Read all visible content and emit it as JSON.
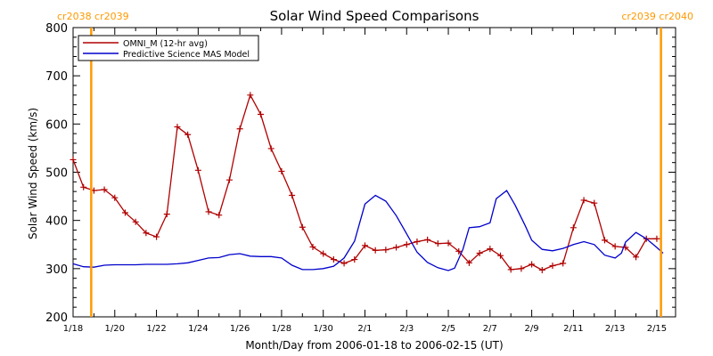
{
  "chart_data": {
    "type": "line",
    "title": "Solar Wind Speed Comparisons",
    "xlabel": "Month/Day from 2006-01-18 to 2006-02-15 (UT)",
    "ylabel": "Solar Wind Speed (km/s)",
    "xlim_days": [
      0,
      28.9
    ],
    "ylim": [
      200,
      800
    ],
    "y_ticks": [
      200,
      300,
      400,
      500,
      600,
      700,
      800
    ],
    "x_ticks": [
      {
        "day": 0,
        "label": "1/18"
      },
      {
        "day": 2,
        "label": "1/20"
      },
      {
        "day": 4,
        "label": "1/22"
      },
      {
        "day": 6,
        "label": "1/24"
      },
      {
        "day": 8,
        "label": "1/26"
      },
      {
        "day": 10,
        "label": "1/28"
      },
      {
        "day": 12,
        "label": "1/30"
      },
      {
        "day": 14,
        "label": "2/1"
      },
      {
        "day": 16,
        "label": "2/3"
      },
      {
        "day": 18,
        "label": "2/5"
      },
      {
        "day": 20,
        "label": "2/7"
      },
      {
        "day": 22,
        "label": "2/9"
      },
      {
        "day": 24,
        "label": "2/11"
      },
      {
        "day": 26,
        "label": "2/13"
      },
      {
        "day": 28,
        "label": "2/15"
      }
    ],
    "carrington_markers": [
      {
        "day": 0.87,
        "label": "cr2038 cr2039",
        "label_side": "left"
      },
      {
        "day": 28.2,
        "label": "cr2039 cr2040",
        "label_side": "right"
      }
    ],
    "legend_position": "top-left",
    "series": [
      {
        "name": "OMNI_M (12-hr avg)",
        "color": "#b00000",
        "markers": true,
        "x": [
          0.0,
          0.5,
          1.0,
          1.5,
          2.0,
          2.5,
          3.0,
          3.5,
          4.0,
          4.5,
          5.0,
          5.5,
          6.0,
          6.5,
          7.0,
          7.5,
          8.0,
          8.5,
          9.0,
          9.5,
          10.0,
          10.5,
          11.0,
          11.5,
          12.0,
          12.5,
          13.0,
          13.5,
          14.0,
          14.5,
          15.0,
          15.5,
          16.0,
          16.5,
          17.0,
          17.5,
          18.0,
          18.5,
          19.0,
          19.5,
          20.0,
          20.5,
          21.0,
          21.5,
          22.0,
          22.5,
          23.0,
          23.5,
          24.0,
          24.5,
          25.0,
          25.5,
          26.0,
          26.5,
          27.0,
          27.5,
          28.0
        ],
        "values": [
          526,
          469,
          462,
          464,
          447,
          416,
          397,
          374,
          366,
          413,
          594,
          578,
          504,
          418,
          411,
          484,
          590,
          660,
          620,
          549,
          502,
          452,
          386,
          345,
          331,
          319,
          311,
          319,
          348,
          338,
          339,
          344,
          350,
          356,
          360,
          352,
          353,
          336,
          312,
          332,
          341,
          327,
          298,
          300,
          309,
          297,
          306,
          311,
          385,
          442,
          436,
          359,
          346,
          344,
          324,
          362,
          362
        ]
      },
      {
        "name": "Predictive Science MAS Model",
        "color": "#0000cc",
        "markers": false,
        "x": [
          0.0,
          0.5,
          1.0,
          1.5,
          2.0,
          2.5,
          3.0,
          3.5,
          4.0,
          4.5,
          5.0,
          5.5,
          6.0,
          6.5,
          7.0,
          7.5,
          8.0,
          8.5,
          9.0,
          9.5,
          10.0,
          10.5,
          11.0,
          11.5,
          12.0,
          12.5,
          13.0,
          13.5,
          14.0,
          14.5,
          15.0,
          15.5,
          16.0,
          16.5,
          17.0,
          17.5,
          18.0,
          18.3,
          18.7,
          19.0,
          19.5,
          20.0,
          20.3,
          20.8,
          21.2,
          21.7,
          22.0,
          22.5,
          23.0,
          23.5,
          24.0,
          24.5,
          25.0,
          25.5,
          26.0,
          26.3,
          26.5,
          27.0,
          27.5,
          28.0,
          28.3
        ],
        "values": [
          310,
          304,
          303,
          307,
          308,
          308,
          308,
          309,
          309,
          309,
          310,
          312,
          317,
          322,
          323,
          329,
          331,
          326,
          325,
          325,
          322,
          307,
          298,
          298,
          300,
          305,
          322,
          357,
          434,
          452,
          440,
          410,
          372,
          334,
          313,
          302,
          296,
          301,
          340,
          385,
          387,
          395,
          445,
          462,
          432,
          388,
          359,
          340,
          337,
          342,
          350,
          356,
          350,
          328,
          322,
          332,
          355,
          375,
          362,
          344,
          332
        ]
      }
    ]
  }
}
